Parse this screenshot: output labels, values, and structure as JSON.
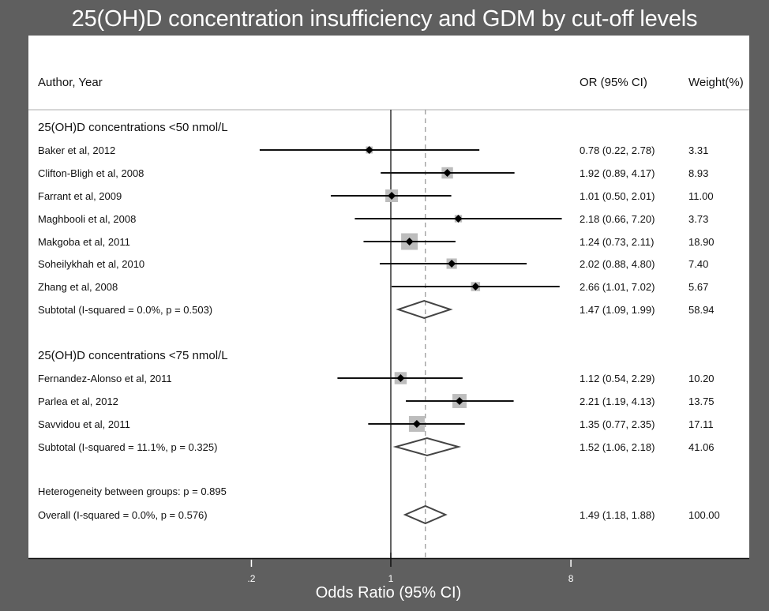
{
  "chart_data": {
    "type": "forest",
    "title": "25(OH)D concentration insufficiency and GDM by cut-off levels",
    "xlabel": "Odds Ratio (95% CI)",
    "xscale": "log",
    "xlim": [
      0.125,
      12.5
    ],
    "xticks": [
      0.2,
      1,
      8
    ],
    "xtick_labels": [
      ".2",
      "1",
      "8"
    ],
    "null_line": 1,
    "overall_line": 1.49,
    "columns": {
      "study": "Author, Year",
      "or": "OR (95% CI)",
      "weight": "Weight(%)"
    },
    "groups": [
      {
        "label": "25(OH)D concentrations <50 nmol/L",
        "studies": [
          {
            "name": "Baker et al, 2012",
            "or": 0.78,
            "lo": 0.22,
            "hi": 2.78,
            "or_text": "0.78 (0.22, 2.78)",
            "weight": "3.31"
          },
          {
            "name": "Clifton-Bligh et al, 2008",
            "or": 1.92,
            "lo": 0.89,
            "hi": 4.17,
            "or_text": "1.92 (0.89, 4.17)",
            "weight": "8.93"
          },
          {
            "name": "Farrant et al, 2009",
            "or": 1.01,
            "lo": 0.5,
            "hi": 2.01,
            "or_text": "1.01 (0.50, 2.01)",
            "weight": "11.00"
          },
          {
            "name": "Maghbooli et al, 2008",
            "or": 2.18,
            "lo": 0.66,
            "hi": 7.2,
            "or_text": "2.18 (0.66, 7.20)",
            "weight": "3.73"
          },
          {
            "name": "Makgoba et al, 2011",
            "or": 1.24,
            "lo": 0.73,
            "hi": 2.11,
            "or_text": "1.24 (0.73, 2.11)",
            "weight": "18.90"
          },
          {
            "name": "Soheilykhah et al, 2010",
            "or": 2.02,
            "lo": 0.88,
            "hi": 4.8,
            "or_text": "2.02 (0.88, 4.80)",
            "weight": "7.40"
          },
          {
            "name": "Zhang et al, 2008",
            "or": 2.66,
            "lo": 1.01,
            "hi": 7.02,
            "or_text": "2.66 (1.01, 7.02)",
            "weight": "5.67"
          }
        ],
        "subtotal": {
          "label": "Subtotal  (I-squared = 0.0%, p = 0.503)",
          "or": 1.47,
          "lo": 1.09,
          "hi": 1.99,
          "or_text": "1.47 (1.09, 1.99)",
          "weight": "58.94"
        }
      },
      {
        "label": "25(OH)D concentrations <75 nmol/L",
        "studies": [
          {
            "name": "Fernandez-Alonso et al, 2011",
            "or": 1.12,
            "lo": 0.54,
            "hi": 2.29,
            "or_text": "1.12 (0.54, 2.29)",
            "weight": "10.20"
          },
          {
            "name": "Parlea et al, 2012",
            "or": 2.21,
            "lo": 1.19,
            "hi": 4.13,
            "or_text": "2.21 (1.19, 4.13)",
            "weight": "13.75"
          },
          {
            "name": "Savvidou et al, 2011",
            "or": 1.35,
            "lo": 0.77,
            "hi": 2.35,
            "or_text": "1.35 (0.77, 2.35)",
            "weight": "17.11"
          }
        ],
        "subtotal": {
          "label": "Subtotal  (I-squared = 11.1%, p = 0.325)",
          "or": 1.52,
          "lo": 1.06,
          "hi": 2.18,
          "or_text": "1.52 (1.06, 2.18)",
          "weight": "41.06"
        }
      }
    ],
    "heterogeneity": "Heterogeneity between groups: p = 0.895",
    "overall": {
      "label": "Overall  (I-squared = 0.0%, p = 0.576)",
      "or": 1.49,
      "lo": 1.18,
      "hi": 1.88,
      "or_text": "1.49 (1.18, 1.88)",
      "weight": "100.00"
    },
    "colors": {
      "background": "#5f5f5f",
      "panel": "#ffffff",
      "weight_box": "#bdbdbd",
      "ci_line": "#111111",
      "diamond": "#444444",
      "overall_line": "#9a9a9a"
    }
  }
}
